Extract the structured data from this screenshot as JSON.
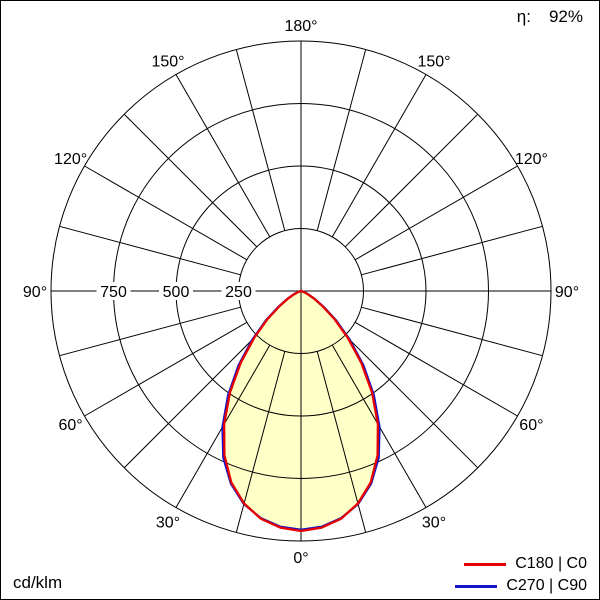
{
  "header": {
    "eta_label": "η:",
    "eta_value": "92%"
  },
  "chart_data": {
    "type": "polar_intensity",
    "unit": "cd/klm",
    "efficiency": "92%",
    "angle_labels_deg": [
      0,
      30,
      60,
      90,
      120,
      150,
      180
    ],
    "radial_ticks": [
      250,
      500,
      750
    ],
    "r_max": 1000,
    "grid_step_deg": 15,
    "fill_color": "#ffffc8",
    "series": [
      {
        "name": "C180 | C0",
        "color": "#e60000",
        "gamma": [
          0,
          5,
          10,
          15,
          20,
          25,
          30,
          35,
          40,
          45,
          50,
          55,
          60,
          65,
          70,
          75,
          80,
          85,
          90
        ],
        "values": [
          960,
          950,
          925,
          880,
          815,
          725,
          615,
          495,
          375,
          265,
          175,
          105,
          60,
          30,
          14,
          6,
          2,
          1,
          0
        ]
      },
      {
        "name": "C270 | C90",
        "color": "#1414cc",
        "gamma": [
          0,
          5,
          10,
          15,
          20,
          25,
          30,
          35,
          40,
          45,
          50,
          55,
          60,
          65,
          70,
          75,
          80,
          85,
          90
        ],
        "values": [
          955,
          947,
          923,
          882,
          820,
          735,
          628,
          508,
          388,
          275,
          182,
          110,
          63,
          32,
          15,
          6,
          2,
          1,
          0
        ]
      }
    ]
  }
}
